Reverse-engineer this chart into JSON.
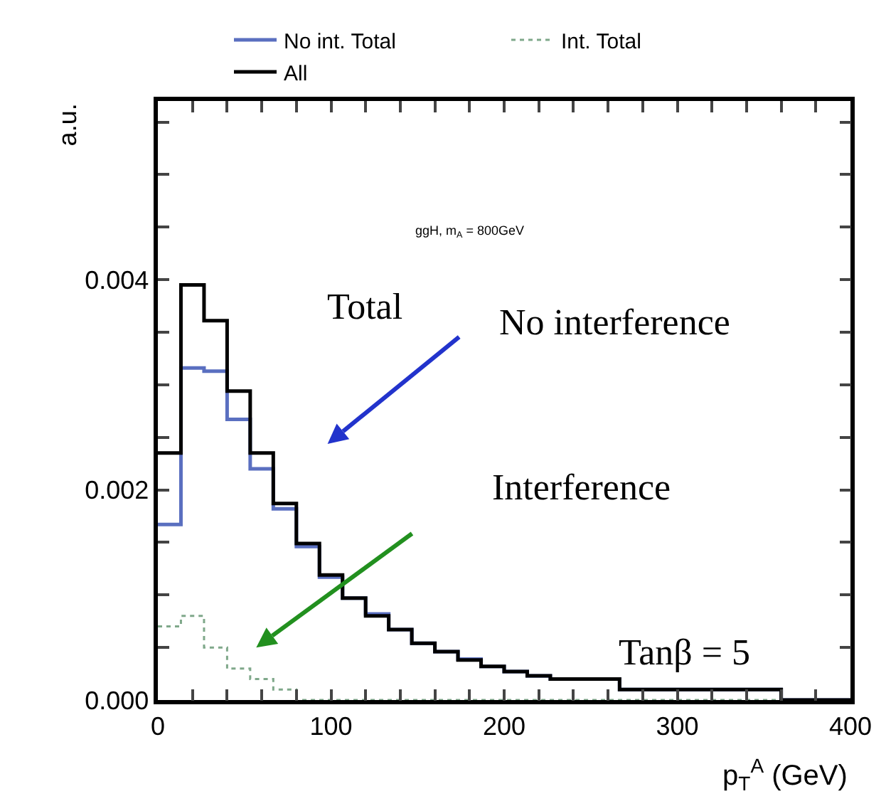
{
  "chart_data": {
    "type": "histogram",
    "xlabel": "p$_{T}$$^{A}$ (GeV)",
    "ylabel": "a.u.",
    "bins": [
      0,
      13.33,
      26.67,
      40,
      53.33,
      66.67,
      80,
      93.33,
      106.67,
      120,
      133.33,
      146.67,
      160,
      173.33,
      186.67,
      200,
      213.33,
      226.67,
      240,
      253.33,
      266.67,
      280,
      293.33,
      306.67,
      320,
      333.33,
      346.67,
      360,
      373.33,
      386.67,
      400
    ],
    "series": [
      {
        "name": "No int. Total",
        "color": "#5a6fc0",
        "line_style": "solid",
        "values": [
          0.00167,
          0.00316,
          0.00313,
          0.00267,
          0.0022,
          0.00182,
          0.00146,
          0.00117,
          0.00097,
          0.00082,
          0.00067,
          0.00054,
          0.00046,
          0.00039,
          0.00032,
          0.00027,
          0.00023,
          0.0002,
          0.0002,
          0.0002,
          0.0001,
          0.0001,
          0.0001,
          0.0001,
          0.0001,
          0.0001,
          0.0001,
          0,
          0,
          0
        ]
      },
      {
        "name": "Int. Total",
        "color": "#7fa88a",
        "line_style": "dotted",
        "values": [
          0.0007,
          0.0008,
          0.0005,
          0.0003,
          0.0002,
          0.0001,
          0,
          0,
          0,
          0,
          0,
          0,
          0,
          0,
          0,
          0,
          0,
          0,
          0,
          0,
          0,
          0,
          0,
          0,
          0,
          0,
          0,
          0,
          0,
          0
        ]
      },
      {
        "name": "All",
        "color": "#000000",
        "line_style": "solid",
        "values": [
          0.00235,
          0.00395,
          0.00361,
          0.00294,
          0.00235,
          0.00187,
          0.00149,
          0.00119,
          0.00097,
          0.0008,
          0.00067,
          0.00054,
          0.00046,
          0.00038,
          0.00032,
          0.00027,
          0.00023,
          0.0002,
          0.0002,
          0.0002,
          0.0001,
          0.0001,
          0.0001,
          0.0001,
          0.0001,
          0.0001,
          0.0001,
          0,
          0,
          0
        ]
      }
    ],
    "xlim": [
      0,
      400
    ],
    "xticks": [
      0,
      {
        "value": 20,
        "label": null
      },
      {
        "value": 40,
        "label": null
      },
      {
        "value": 60,
        "label": null
      },
      {
        "value": 80,
        "label": null
      },
      100,
      {
        "value": 120,
        "label": null
      },
      {
        "value": 140,
        "label": null
      },
      {
        "value": 160,
        "label": null
      },
      {
        "value": 180,
        "label": null
      },
      200,
      {
        "value": 220,
        "label": null
      },
      {
        "value": 240,
        "label": null
      },
      {
        "value": 260,
        "label": null
      },
      {
        "value": 280,
        "label": null
      },
      300,
      {
        "value": 320,
        "label": null
      },
      {
        "value": 340,
        "label": null
      },
      {
        "value": 360,
        "label": null
      },
      {
        "value": 380,
        "label": null
      },
      400
    ],
    "ylim": [
      0,
      0.0057
    ],
    "yticks": [
      {
        "value": 0,
        "label": "0.000"
      },
      {
        "value": 0.0005,
        "label": null
      },
      {
        "value": 0.001,
        "label": null
      },
      {
        "value": 0.0015,
        "label": null
      },
      {
        "value": 0.002,
        "label": "0.002"
      },
      {
        "value": 0.0025,
        "label": null
      },
      {
        "value": 0.003,
        "label": null
      },
      {
        "value": 0.0035,
        "label": null
      },
      {
        "value": 0.004,
        "label": "0.004"
      },
      {
        "value": 0.0045,
        "label": null
      },
      {
        "value": 0.005,
        "label": null
      },
      {
        "value": 0.0055,
        "label": null
      }
    ],
    "grid": false,
    "legend": "top",
    "annotations": [
      "ggH, m$_{A}$ = 800GeV",
      "Total",
      "No interference",
      "Interference",
      "Tanβ = 5"
    ]
  }
}
